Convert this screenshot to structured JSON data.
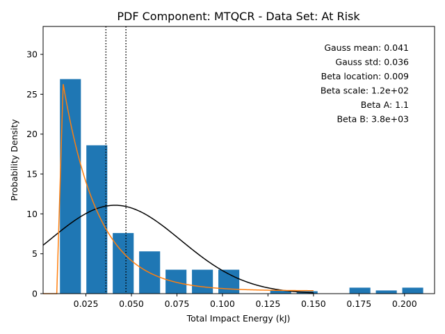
{
  "chart_data": {
    "type": "bar",
    "title": "PDF Component: MTQCR - Data Set: At Risk",
    "xlabel": "Total Impact Energy (kJ)",
    "ylabel": "Probability Density",
    "xlim": [
      0.0015,
      0.2165
    ],
    "ylim": [
      0,
      33.5
    ],
    "xticks": [
      0.025,
      0.05,
      0.075,
      0.1,
      0.125,
      0.15,
      0.175,
      0.2
    ],
    "xtick_labels": [
      "0.025",
      "0.050",
      "0.075",
      "0.100",
      "0.125",
      "0.150",
      "0.175",
      "0.200"
    ],
    "yticks": [
      0,
      5,
      10,
      15,
      20,
      25,
      30
    ],
    "ytick_labels": [
      "0",
      "5",
      "10",
      "15",
      "20",
      "25",
      "30"
    ],
    "grid": false,
    "bar_width": 0.0115,
    "bars": [
      {
        "x": 0.0165,
        "value": 26.9
      },
      {
        "x": 0.031,
        "value": 18.6
      },
      {
        "x": 0.0455,
        "value": 7.6
      },
      {
        "x": 0.06,
        "value": 5.3
      },
      {
        "x": 0.0745,
        "value": 3.0
      },
      {
        "x": 0.089,
        "value": 3.0
      },
      {
        "x": 0.1035,
        "value": 3.0
      },
      {
        "x": 0.132,
        "value": 0.4
      },
      {
        "x": 0.1465,
        "value": 0.3
      },
      {
        "x": 0.1755,
        "value": 0.75
      },
      {
        "x": 0.19,
        "value": 0.4
      },
      {
        "x": 0.2045,
        "value": 0.75
      }
    ],
    "vlines": [
      0.036,
      0.047
    ],
    "gauss": {
      "mean": 0.041,
      "std": 0.036,
      "x_range": [
        0.0015,
        0.15
      ],
      "color": "#000000"
    },
    "beta": {
      "location": 0.009,
      "x_start": 0.0015,
      "x_end": 0.15,
      "peak_x": 0.0125,
      "peak_y": 26.3,
      "color": "#ff7f0e"
    },
    "bar_color": "#1f77b4",
    "annotations": [
      "Gauss mean: 0.041",
      "Gauss std: 0.036",
      "Beta location: 0.009",
      "Beta scale: 1.2e+02",
      "Beta A: 1.1",
      "Beta B: 3.8e+03"
    ]
  }
}
